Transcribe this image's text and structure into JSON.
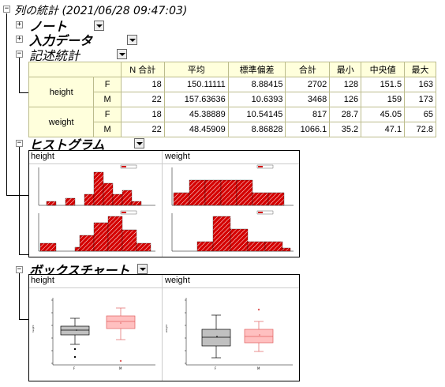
{
  "root": {
    "title": "列の統計 (2021/06/28 09:47:03)"
  },
  "sections": {
    "note": {
      "title": "ノート"
    },
    "input": {
      "title": "入力データ"
    },
    "desc": {
      "title": "記述統計"
    },
    "hist": {
      "title": "ヒストグラム"
    },
    "box": {
      "title": "ボックスチャート"
    }
  },
  "stats_table": {
    "headers": [
      "N 合計",
      "平均",
      "標準偏差",
      "合計",
      "最小",
      "中央値",
      "最大"
    ],
    "groups": [
      {
        "name": "height",
        "rows": [
          {
            "label": "F",
            "values": [
              "18",
              "150.11111",
              "8.88415",
              "2702",
              "128",
              "151.5",
              "163"
            ]
          },
          {
            "label": "M",
            "values": [
              "22",
              "157.63636",
              "10.6393",
              "3468",
              "126",
              "159",
              "173"
            ]
          }
        ]
      },
      {
        "name": "weight",
        "rows": [
          {
            "label": "F",
            "values": [
              "18",
              "45.38889",
              "10.54145",
              "817",
              "28.7",
              "45.05",
              "65"
            ]
          },
          {
            "label": "M",
            "values": [
              "22",
              "48.45909",
              "8.86828",
              "1066.1",
              "35.2",
              "47.1",
              "72.8"
            ]
          }
        ]
      }
    ]
  },
  "histogram_panels": {
    "left": "height",
    "right": "weight"
  },
  "box_panels": {
    "left": "height",
    "right": "weight"
  },
  "box_axis": {
    "x_labels": [
      "F",
      "M"
    ],
    "height_ylabel": "height",
    "weight_ylabel": "weight"
  },
  "colors": {
    "hist_fill": "#d40000",
    "box_f": "#c0c0c0",
    "box_m": "#ffc0c0",
    "table_bg": "#ffffdc"
  }
}
